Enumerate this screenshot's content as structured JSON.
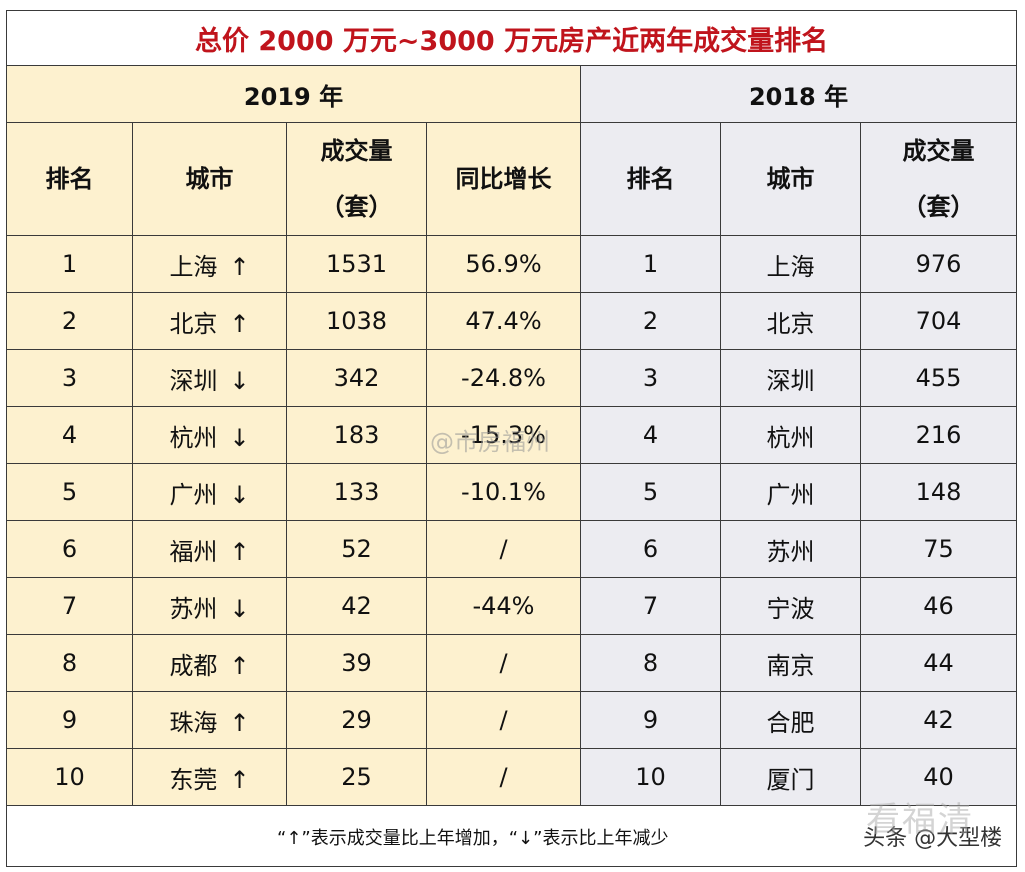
{
  "title": "总价 2000 万元~3000 万元房产近两年成交量排名",
  "left": {
    "year": "2019 年",
    "headers": {
      "rank": "排名",
      "city": "城市",
      "volume_line1": "成交量",
      "volume_line2": "（套）",
      "growth": "同比增长"
    },
    "rows": [
      {
        "rank": "1",
        "city": "上海",
        "arrow": "↑",
        "volume": "1531",
        "growth": "56.9%"
      },
      {
        "rank": "2",
        "city": "北京",
        "arrow": "↑",
        "volume": "1038",
        "growth": "47.4%"
      },
      {
        "rank": "3",
        "city": "深圳",
        "arrow": "↓",
        "volume": "342",
        "growth": "-24.8%"
      },
      {
        "rank": "4",
        "city": "杭州",
        "arrow": "↓",
        "volume": "183",
        "growth": "-15.3%"
      },
      {
        "rank": "5",
        "city": "广州",
        "arrow": "↓",
        "volume": "133",
        "growth": "-10.1%"
      },
      {
        "rank": "6",
        "city": "福州",
        "arrow": "↑",
        "volume": "52",
        "growth": "/"
      },
      {
        "rank": "7",
        "city": "苏州",
        "arrow": "↓",
        "volume": "42",
        "growth": "-44%"
      },
      {
        "rank": "8",
        "city": "成都",
        "arrow": "↑",
        "volume": "39",
        "growth": "/"
      },
      {
        "rank": "9",
        "city": "珠海",
        "arrow": "↑",
        "volume": "29",
        "growth": "/"
      },
      {
        "rank": "10",
        "city": "东莞",
        "arrow": "↑",
        "volume": "25",
        "growth": "/"
      }
    ]
  },
  "right": {
    "year": "2018 年",
    "headers": {
      "rank": "排名",
      "city": "城市",
      "volume_line1": "成交量",
      "volume_line2": "（套）"
    },
    "rows": [
      {
        "rank": "1",
        "city": "上海",
        "volume": "976"
      },
      {
        "rank": "2",
        "city": "北京",
        "volume": "704"
      },
      {
        "rank": "3",
        "city": "深圳",
        "volume": "455"
      },
      {
        "rank": "4",
        "city": "杭州",
        "volume": "216"
      },
      {
        "rank": "5",
        "city": "广州",
        "volume": "148"
      },
      {
        "rank": "6",
        "city": "苏州",
        "volume": "75"
      },
      {
        "rank": "7",
        "city": "宁波",
        "volume": "46"
      },
      {
        "rank": "8",
        "city": "南京",
        "volume": "44"
      },
      {
        "rank": "9",
        "city": "合肥",
        "volume": "42"
      },
      {
        "rank": "10",
        "city": "厦门",
        "volume": "40"
      }
    ]
  },
  "footnote": "“↑”表示成交量比上年增加，“↓”表示比上年减少",
  "credit": "头条 @大型楼",
  "watermark_center": "@市房福州",
  "watermark_corner": "看福清"
}
